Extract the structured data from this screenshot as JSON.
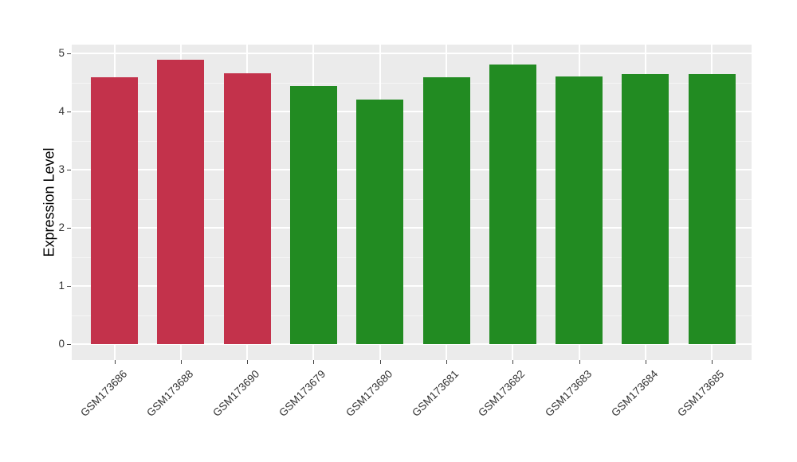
{
  "chart_data": {
    "type": "bar",
    "title": "",
    "xlabel": "",
    "ylabel": "Expression Level",
    "categories": [
      "GSM173686",
      "GSM173688",
      "GSM173690",
      "GSM173679",
      "GSM173680",
      "GSM173681",
      "GSM173682",
      "GSM173683",
      "GSM173684",
      "GSM173685"
    ],
    "values": [
      4.59,
      4.89,
      4.66,
      4.44,
      4.2,
      4.59,
      4.81,
      4.6,
      4.65,
      4.65
    ],
    "bar_colors": [
      "#C3324B",
      "#C3324B",
      "#C3324B",
      "#228B22",
      "#228B22",
      "#228B22",
      "#228B22",
      "#228B22",
      "#228B22",
      "#228B22"
    ],
    "y_ticks": [
      0,
      1,
      2,
      3,
      4,
      5
    ],
    "y_minor_ticks": [
      0.5,
      1.5,
      2.5,
      3.5,
      4.5
    ],
    "ylim": [
      -0.27,
      5.15
    ],
    "grid": true,
    "legend_position": "none",
    "colors": {
      "red_group": "#C3324B",
      "green_group": "#228B22",
      "panel_background": "#EBEBEB",
      "figure_background": "#FFFFFF",
      "grid_major": "#FFFFFF",
      "grid_minor": "#F5F5F5",
      "tick_label": "#333333",
      "axis_title": "#000000"
    }
  }
}
